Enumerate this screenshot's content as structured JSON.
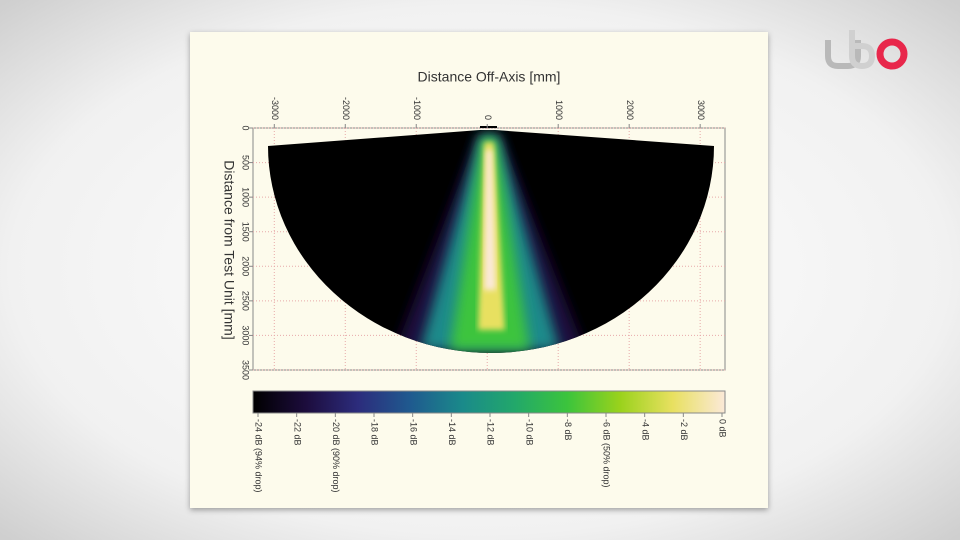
{
  "chart_data": {
    "type": "heatmap",
    "x_label": "Distance Off-Axis [mm]",
    "y_label": "Distance from Test Unit [mm]",
    "xlim": [
      -3300,
      3350
    ],
    "xticks": [
      -3000,
      -2000,
      -1000,
      0,
      1000,
      2000,
      3000
    ],
    "ylim": [
      0,
      3500
    ],
    "yticks": [
      0,
      500,
      1000,
      1500,
      2000,
      2500,
      3000,
      3500
    ],
    "grid": true,
    "colorbar": {
      "lim": [
        -24,
        0
      ],
      "colors": [
        "#000000",
        "#1c0c3c",
        "#2c2c7c",
        "#1f5a8f",
        "#1a8a8a",
        "#22a86a",
        "#3cc43c",
        "#9ad21c",
        "#e8e060",
        "#fbe9d8"
      ],
      "ticks": [
        {
          "value": -24,
          "label": "-24 dB (94% drop)"
        },
        {
          "value": -22,
          "label": "-22 dB"
        },
        {
          "value": -20,
          "label": "-20 dB (90% drop)"
        },
        {
          "value": -18,
          "label": "-18 dB"
        },
        {
          "value": -16,
          "label": "-16 dB"
        },
        {
          "value": -14,
          "label": "-14 dB"
        },
        {
          "value": -12,
          "label": "-12 dB"
        },
        {
          "value": -10,
          "label": "-10 dB"
        },
        {
          "value": -8,
          "label": "-8 dB"
        },
        {
          "value": -6,
          "label": "-6 dB (50% drop)"
        },
        {
          "value": -4,
          "label": "-4 dB"
        },
        {
          "value": -2,
          "label": "-2 dB"
        },
        {
          "value": 0,
          "label": "0 dB"
        }
      ]
    }
  }
}
